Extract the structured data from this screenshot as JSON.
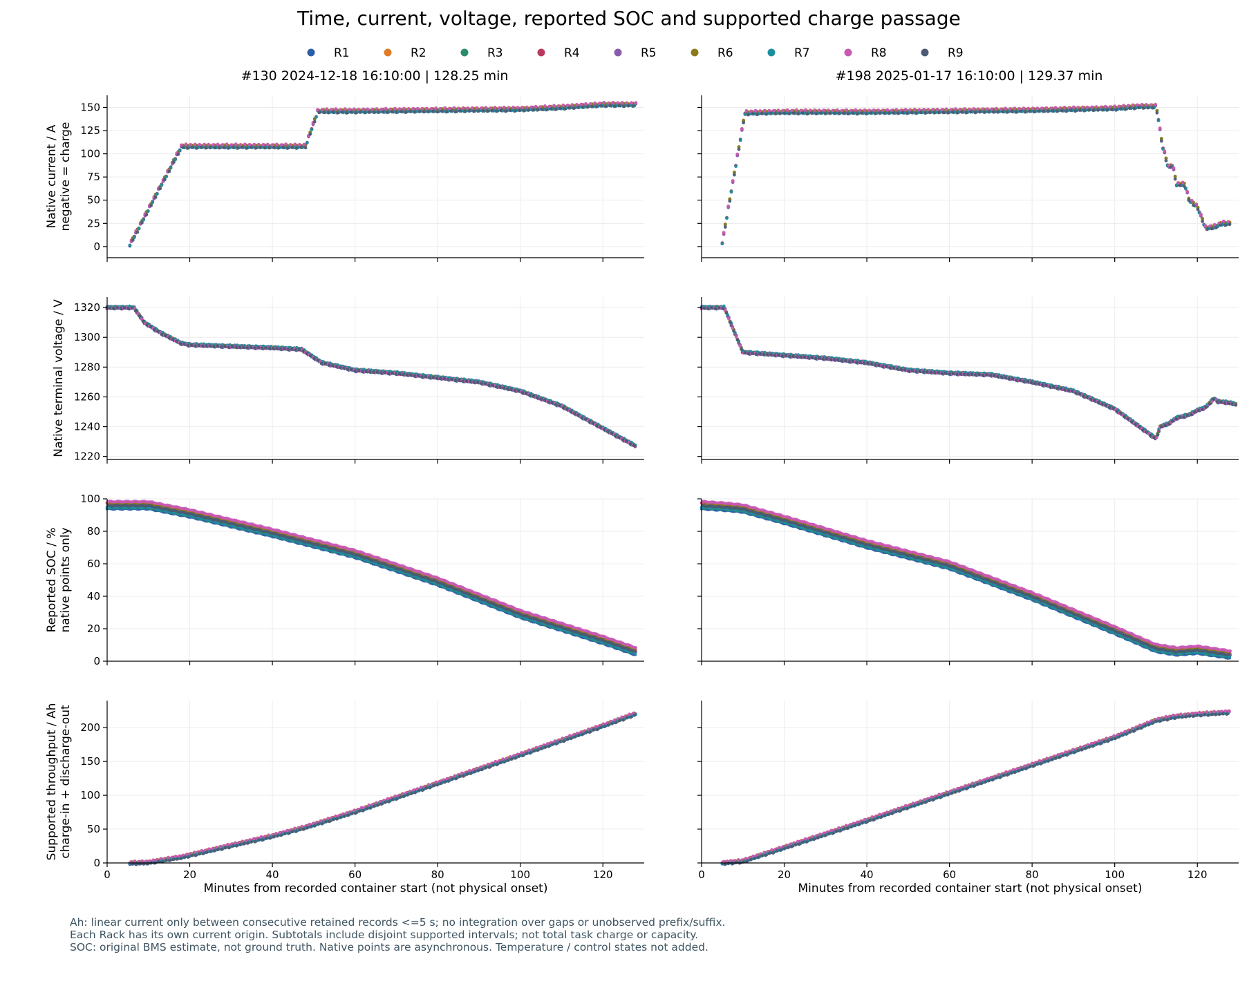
{
  "title": "Time, current, voltage, reported SOC and supported charge passage",
  "legend": [
    {
      "name": "R1",
      "color": "#2a5ea8"
    },
    {
      "name": "R2",
      "color": "#e07b25"
    },
    {
      "name": "R3",
      "color": "#2a8c6a"
    },
    {
      "name": "R4",
      "color": "#b83a5c"
    },
    {
      "name": "R5",
      "color": "#8a5aab"
    },
    {
      "name": "R6",
      "color": "#8c7b1a"
    },
    {
      "name": "R7",
      "color": "#1a8fa0"
    },
    {
      "name": "R8",
      "color": "#c85ab4"
    },
    {
      "name": "R9",
      "color": "#4a5b72"
    }
  ],
  "footnotes": [
    "Ah: linear current only between consecutive retained records <=5 s; no integration over gaps or unobserved prefix/suffix.",
    "Each Rack has its own current origin. Subtotals include disjoint supported intervals; not total task charge or capacity.",
    "SOC: original BMS estimate, not ground truth. Native points are asynchronous. Temperature / control states not added."
  ],
  "chart_data": {
    "type": "scatter",
    "xlabel": "Minutes from recorded container start (not physical onset)",
    "xlim": [
      0,
      130
    ],
    "xticks": [
      0,
      20,
      40,
      60,
      80,
      100,
      120
    ],
    "rows": [
      {
        "key": "current",
        "ylabel": [
          "Native current / A",
          "negative = charge"
        ],
        "ylim": [
          -12,
          163
        ],
        "yticks": [
          0,
          25,
          50,
          75,
          100,
          125,
          150
        ]
      },
      {
        "key": "voltage",
        "ylabel": [
          "Native terminal voltage / V"
        ],
        "ylim": [
          1218,
          1327
        ],
        "yticks": [
          1220,
          1240,
          1260,
          1280,
          1300,
          1320
        ]
      },
      {
        "key": "soc",
        "ylabel": [
          "Reported SOC / %",
          "native points only"
        ],
        "ylim": [
          0,
          100
        ],
        "yticks": [
          0,
          20,
          40,
          60,
          80,
          100
        ]
      },
      {
        "key": "ah",
        "ylabel": [
          "Supported throughput / Ah",
          "charge-in + discharge-out"
        ],
        "ylim": [
          0,
          240
        ],
        "yticks": [
          0,
          50,
          100,
          150,
          200
        ]
      }
    ],
    "columns": [
      {
        "title": "#130  2024-12-18 16:10:00  |  128.25 min",
        "xmax_data": 128.25,
        "current": [
          [
            5.5,
            2
          ],
          [
            18,
            108
          ],
          [
            48,
            108
          ],
          [
            51,
            146
          ],
          [
            60,
            146
          ],
          [
            80,
            147
          ],
          [
            100,
            148
          ],
          [
            110,
            150
          ],
          [
            120,
            153
          ],
          [
            128,
            153
          ]
        ],
        "voltage": [
          [
            0,
            1320
          ],
          [
            5.5,
            1320
          ],
          [
            6.5,
            1320
          ],
          [
            9,
            1310
          ],
          [
            13,
            1303
          ],
          [
            18,
            1296
          ],
          [
            20,
            1295
          ],
          [
            30,
            1294
          ],
          [
            40,
            1293
          ],
          [
            47,
            1292
          ],
          [
            52,
            1283
          ],
          [
            60,
            1278
          ],
          [
            70,
            1276
          ],
          [
            80,
            1273
          ],
          [
            90,
            1270
          ],
          [
            100,
            1264
          ],
          [
            110,
            1254
          ],
          [
            120,
            1239
          ],
          [
            128,
            1227
          ]
        ],
        "soc": [
          [
            0,
            96
          ],
          [
            10,
            96
          ],
          [
            20,
            91
          ],
          [
            40,
            79
          ],
          [
            60,
            66
          ],
          [
            80,
            49
          ],
          [
            100,
            29
          ],
          [
            120,
            13
          ],
          [
            128,
            6
          ]
        ],
        "ah": [
          [
            5.5,
            0
          ],
          [
            10,
            1
          ],
          [
            18,
            9
          ],
          [
            30,
            26
          ],
          [
            40,
            40
          ],
          [
            48,
            53
          ],
          [
            60,
            76
          ],
          [
            80,
            118
          ],
          [
            100,
            160
          ],
          [
            120,
            203
          ],
          [
            128,
            221
          ]
        ]
      },
      {
        "title": "#198  2025-01-17 16:10:00  |  129.37 min",
        "xmax_data": 129.37,
        "current": [
          [
            5,
            4
          ],
          [
            10.5,
            144
          ],
          [
            20,
            145
          ],
          [
            40,
            145
          ],
          [
            60,
            146
          ],
          [
            80,
            147
          ],
          [
            100,
            149
          ],
          [
            106,
            151
          ],
          [
            110,
            151
          ],
          [
            110.5,
            140
          ],
          [
            111.5,
            110
          ],
          [
            113,
            85
          ],
          [
            114,
            88
          ],
          [
            115,
            67
          ],
          [
            117,
            67
          ],
          [
            118,
            50
          ],
          [
            120,
            43
          ],
          [
            122,
            20
          ],
          [
            124,
            21
          ],
          [
            126,
            25
          ],
          [
            128,
            25
          ]
        ],
        "voltage": [
          [
            0,
            1320
          ],
          [
            5,
            1320
          ],
          [
            5.5,
            1320
          ],
          [
            7,
            1310
          ],
          [
            10,
            1290
          ],
          [
            20,
            1288
          ],
          [
            30,
            1286
          ],
          [
            40,
            1283
          ],
          [
            50,
            1278
          ],
          [
            60,
            1276
          ],
          [
            70,
            1275
          ],
          [
            80,
            1270
          ],
          [
            90,
            1264
          ],
          [
            100,
            1252
          ],
          [
            106,
            1240
          ],
          [
            110,
            1232
          ],
          [
            111,
            1240
          ],
          [
            113,
            1242
          ],
          [
            115,
            1246
          ],
          [
            118,
            1248
          ],
          [
            120,
            1251
          ],
          [
            122,
            1253
          ],
          [
            124,
            1259
          ],
          [
            125,
            1257
          ],
          [
            128,
            1256
          ],
          [
            129.37,
            1255
          ]
        ],
        "soc": [
          [
            0,
            96
          ],
          [
            6,
            95
          ],
          [
            10,
            94
          ],
          [
            20,
            87
          ],
          [
            40,
            72
          ],
          [
            60,
            59
          ],
          [
            80,
            40
          ],
          [
            100,
            19
          ],
          [
            110,
            8
          ],
          [
            115,
            6
          ],
          [
            120,
            7
          ],
          [
            128,
            4
          ]
        ],
        "ah": [
          [
            5,
            0
          ],
          [
            10,
            3
          ],
          [
            20,
            23
          ],
          [
            40,
            63
          ],
          [
            60,
            104
          ],
          [
            80,
            145
          ],
          [
            100,
            186
          ],
          [
            110,
            211
          ],
          [
            115,
            217
          ],
          [
            120,
            220
          ],
          [
            128,
            223
          ]
        ]
      }
    ]
  }
}
